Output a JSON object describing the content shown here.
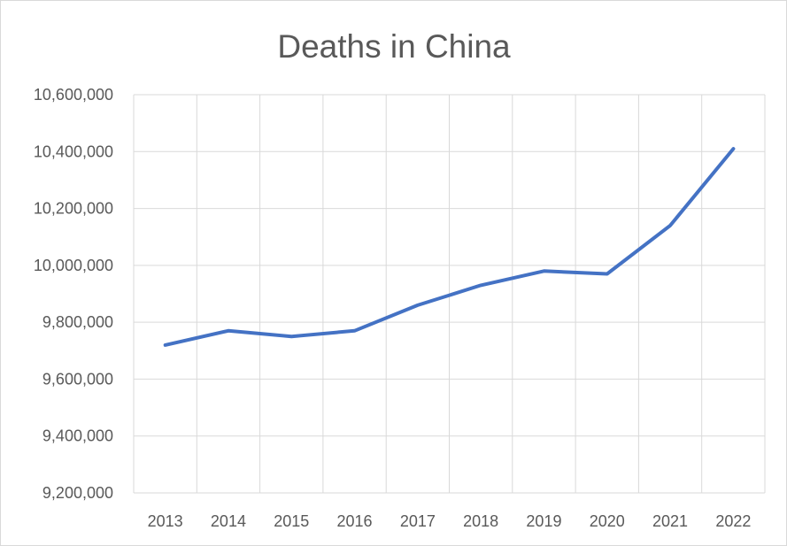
{
  "chart_data": {
    "type": "line",
    "title": "Deaths in China",
    "xlabel": "",
    "ylabel": "",
    "categories": [
      "2013",
      "2014",
      "2015",
      "2016",
      "2017",
      "2018",
      "2019",
      "2020",
      "2021",
      "2022"
    ],
    "series": [
      {
        "values": [
          9720000,
          9770000,
          9750000,
          9770000,
          9860000,
          9930000,
          9980000,
          9970000,
          10140000,
          10410000
        ],
        "color": "#4472c4"
      }
    ],
    "ylim": [
      9200000,
      10600000
    ],
    "yticks": [
      9200000,
      9400000,
      9600000,
      9800000,
      10000000,
      10200000,
      10400000,
      10600000
    ],
    "ytick_labels": [
      "9,200,000",
      "9,400,000",
      "9,600,000",
      "9,800,000",
      "10,000,000",
      "10,200,000",
      "10,400,000",
      "10,600,000"
    ],
    "grid": true,
    "legend": "none"
  }
}
